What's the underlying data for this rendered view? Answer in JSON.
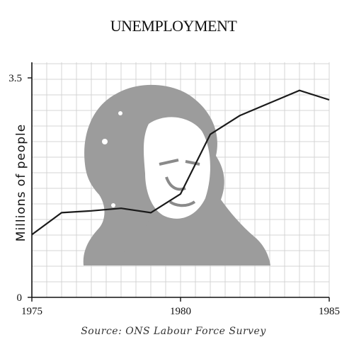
{
  "chart_data": {
    "type": "line",
    "title": "UNEMPLOYMENT",
    "xlabel": "",
    "ylabel": "Millions of people",
    "xlim": [
      1975,
      1985
    ],
    "ylim": [
      0,
      3.5
    ],
    "x_ticks": [
      "1975",
      "1980",
      "1985"
    ],
    "y_ticks": [
      "0",
      "3.5"
    ],
    "grid": true,
    "source": "Source: ONS Labour Force Survey",
    "series": [
      {
        "x": [
          1975,
          1976,
          1977,
          1978,
          1979,
          1980,
          1981,
          1982,
          1983,
          1984,
          1985
        ],
        "values": [
          1.0,
          1.35,
          1.38,
          1.42,
          1.35,
          1.65,
          2.6,
          2.9,
          3.1,
          3.3,
          3.15
        ],
        "color": "#1a1a1a"
      }
    ],
    "background_image": "portrait-silhouette"
  }
}
